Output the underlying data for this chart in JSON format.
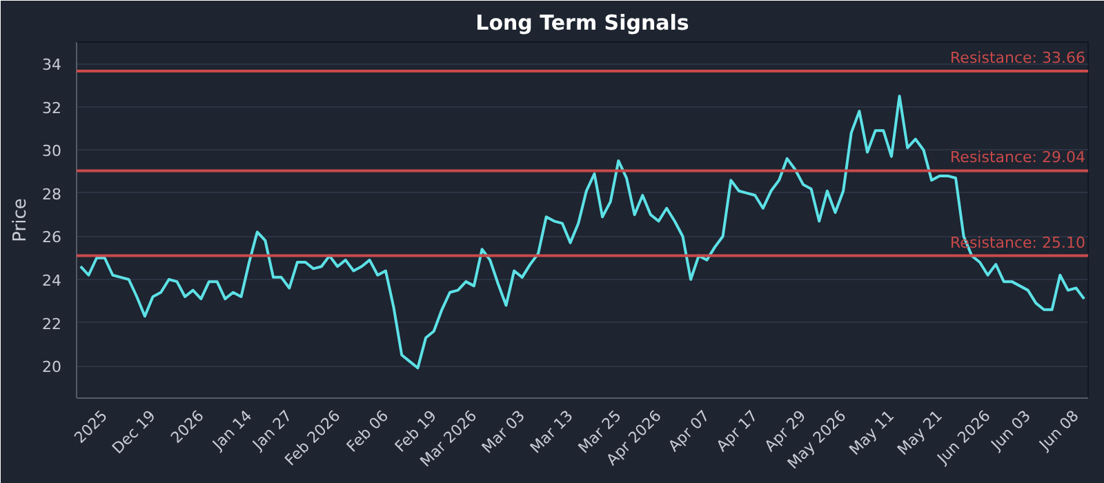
{
  "chart_data": {
    "type": "line",
    "title": "Long Term Signals",
    "ylabel": "Price",
    "categories": [
      null,
      null,
      null,
      "2025",
      null,
      null,
      null,
      null,
      null,
      "Dec 19",
      null,
      null,
      null,
      null,
      null,
      "2026",
      null,
      null,
      null,
      null,
      null,
      "Jan 14",
      null,
      null,
      null,
      null,
      "Jan 27",
      null,
      null,
      null,
      null,
      null,
      "Feb 2026",
      null,
      null,
      null,
      null,
      null,
      "Feb 06",
      null,
      null,
      null,
      null,
      null,
      "Feb 19",
      null,
      null,
      null,
      null,
      "Mar 2026",
      null,
      null,
      null,
      null,
      null,
      "Mar 03",
      null,
      null,
      null,
      null,
      null,
      "Mar 13",
      null,
      null,
      null,
      null,
      null,
      "Mar 25",
      null,
      null,
      null,
      null,
      "Apr 2026",
      null,
      null,
      null,
      null,
      null,
      "Apr 07",
      null,
      null,
      null,
      null,
      null,
      "Apr 17",
      null,
      null,
      null,
      null,
      null,
      "Apr 29",
      null,
      null,
      null,
      null,
      "May 2026",
      null,
      null,
      null,
      null,
      null,
      "May 11",
      null,
      null,
      null,
      null,
      null,
      "May 21",
      null,
      null,
      null,
      null,
      null,
      "Jun 2026",
      null,
      null,
      null,
      null,
      "Jun 03",
      null,
      null,
      null,
      null,
      null,
      "Jun 08",
      null
    ],
    "series": [
      {
        "color": "#5ce1e6",
        "values": [
          24.6,
          24.2,
          25.0,
          25.0,
          24.2,
          24.1,
          24.0,
          23.2,
          22.3,
          23.2,
          23.4,
          24.0,
          23.9,
          23.2,
          23.5,
          23.1,
          23.9,
          23.9,
          23.1,
          23.4,
          23.2,
          24.8,
          26.2,
          25.8,
          24.1,
          24.1,
          23.6,
          24.8,
          24.8,
          24.5,
          24.6,
          25.1,
          24.6,
          24.9,
          24.4,
          24.6,
          24.9,
          24.2,
          24.4,
          22.7,
          20.5,
          20.2,
          19.9,
          21.3,
          21.6,
          22.6,
          23.4,
          23.5,
          23.9,
          23.7,
          25.4,
          24.9,
          23.8,
          22.8,
          24.4,
          24.1,
          24.7,
          25.2,
          26.9,
          26.7,
          26.6,
          25.7,
          26.6,
          28.1,
          28.9,
          26.9,
          27.6,
          29.5,
          28.7,
          27.0,
          27.9,
          27.0,
          26.7,
          27.3,
          26.7,
          26.0,
          24.0,
          25.1,
          24.9,
          25.5,
          26.0,
          28.6,
          28.1,
          28.0,
          27.9,
          27.3,
          28.1,
          28.6,
          29.6,
          29.1,
          28.4,
          28.2,
          26.7,
          28.1,
          27.1,
          28.1,
          30.8,
          31.8,
          29.9,
          30.9,
          30.9,
          29.7,
          32.5,
          30.1,
          30.5,
          30.0,
          28.6,
          28.8,
          28.8,
          28.7,
          26.0,
          25.1,
          24.8,
          24.2,
          24.7,
          23.9,
          23.9,
          23.7,
          23.5,
          22.9,
          22.6,
          22.6,
          24.2,
          23.5,
          23.6,
          23.1
        ]
      }
    ],
    "ylim": [
      18.5,
      35
    ],
    "yticks": [
      20,
      22,
      24,
      26,
      28,
      30,
      32,
      34
    ],
    "ref_lines": [
      {
        "axis": "y",
        "value": 33.66,
        "label": "Resistance: 33.66",
        "color": "#c94a4a"
      },
      {
        "axis": "y",
        "value": 29.04,
        "label": "Resistance: 29.04",
        "color": "#c94a4a"
      },
      {
        "axis": "y",
        "value": 25.1,
        "label": "Resistance: 25.10",
        "color": "#c94a4a"
      }
    ],
    "grid": "y",
    "marker": "none",
    "line_style": "solid"
  }
}
